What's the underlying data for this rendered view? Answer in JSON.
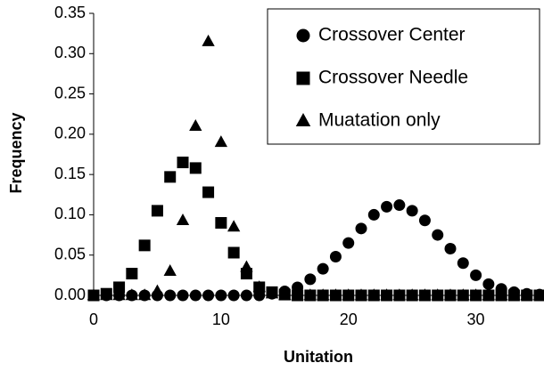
{
  "chart_data": {
    "type": "scatter",
    "x_label": "Unitation",
    "y_label": "Frequency",
    "x": [
      0,
      1,
      2,
      3,
      4,
      5,
      6,
      7,
      8,
      9,
      10,
      11,
      12,
      13,
      14,
      15,
      16,
      17,
      18,
      19,
      20,
      21,
      22,
      23,
      24,
      25,
      26,
      27,
      28,
      29,
      30,
      31,
      32,
      33,
      34,
      35
    ],
    "xlim": [
      0,
      35
    ],
    "xticks": [
      0,
      10,
      20,
      30
    ],
    "ylim": [
      0,
      0.35
    ],
    "yticks": [
      {
        "value": 0,
        "label": "0.00"
      },
      {
        "value": 0.05,
        "label": "0.05"
      },
      {
        "value": 0.1,
        "label": "0.10"
      },
      {
        "value": 0.15,
        "label": "0.15"
      },
      {
        "value": 0.2,
        "label": "0.20"
      },
      {
        "value": 0.25,
        "label": "0.25"
      },
      {
        "value": 0.3,
        "label": "0.30"
      },
      {
        "value": 0.35,
        "label": "0.35"
      }
    ],
    "legend_position": "upper right",
    "series": [
      {
        "name": "Crossover Center",
        "color": "#000000",
        "marker": "circle",
        "values": [
          0,
          0,
          0,
          0,
          0,
          0,
          0,
          0,
          0,
          0,
          0,
          0,
          0,
          0,
          0.002,
          0.005,
          0.01,
          0.02,
          0.033,
          0.048,
          0.065,
          0.083,
          0.1,
          0.11,
          0.112,
          0.105,
          0.093,
          0.075,
          0.058,
          0.04,
          0.025,
          0.014,
          0.008,
          0.004,
          0.002,
          0.001
        ]
      },
      {
        "name": "Crossover Needle",
        "color": "#000000",
        "marker": "square",
        "values": [
          0,
          0.002,
          0.01,
          0.027,
          0.062,
          0.105,
          0.147,
          0.165,
          0.158,
          0.128,
          0.09,
          0.053,
          0.027,
          0.01,
          0.004,
          0.001,
          0,
          0,
          0,
          0,
          0,
          0,
          0,
          0,
          0,
          0,
          0,
          0,
          0,
          0,
          0,
          0,
          0,
          0,
          0,
          0
        ]
      },
      {
        "name": "Muatation only",
        "color": "#000000",
        "marker": "triangle",
        "values": [
          0,
          0,
          0,
          0,
          0,
          0.005,
          0.03,
          0.093,
          0.21,
          0.315,
          0.19,
          0.085,
          0.035,
          0.01,
          0.002,
          0,
          0,
          0,
          0,
          0,
          0,
          0,
          0,
          0,
          0,
          0,
          0,
          0,
          0,
          0,
          0,
          0,
          0,
          0,
          0,
          0
        ]
      }
    ]
  }
}
